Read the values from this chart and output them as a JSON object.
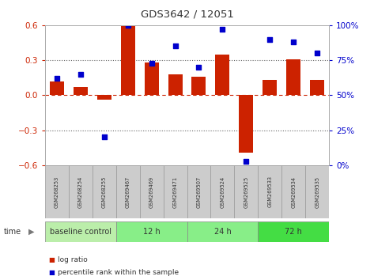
{
  "title": "GDS3642 / 12051",
  "samples": [
    "GSM268253",
    "GSM268254",
    "GSM268255",
    "GSM269467",
    "GSM269469",
    "GSM269471",
    "GSM269507",
    "GSM269524",
    "GSM269525",
    "GSM269533",
    "GSM269534",
    "GSM269535"
  ],
  "log_ratio": [
    0.12,
    0.07,
    -0.04,
    0.6,
    0.28,
    0.18,
    0.16,
    0.35,
    -0.49,
    0.13,
    0.31,
    0.13
  ],
  "pct_rank": [
    62,
    65,
    20,
    100,
    73,
    85,
    70,
    97,
    3,
    90,
    88,
    80
  ],
  "bar_color": "#cc2200",
  "dot_color": "#0000cc",
  "ylim_left": [
    -0.6,
    0.6
  ],
  "ylim_right": [
    0,
    100
  ],
  "yticks_left": [
    -0.6,
    -0.3,
    0.0,
    0.3,
    0.6
  ],
  "yticks_right": [
    0,
    25,
    50,
    75,
    100
  ],
  "groups": [
    {
      "label": "baseline control",
      "start": 0,
      "end": 3,
      "color": "#bbeeaa"
    },
    {
      "label": "12 h",
      "start": 3,
      "end": 6,
      "color": "#88ee88"
    },
    {
      "label": "24 h",
      "start": 6,
      "end": 9,
      "color": "#88ee88"
    },
    {
      "label": "72 h",
      "start": 9,
      "end": 12,
      "color": "#44dd44"
    }
  ],
  "time_label": "time",
  "legend_bar": "log ratio",
  "legend_dot": "percentile rank within the sample",
  "background_color": "#ffffff",
  "tick_label_color_left": "#cc2200",
  "tick_label_color_right": "#0000cc",
  "bar_width": 0.6
}
